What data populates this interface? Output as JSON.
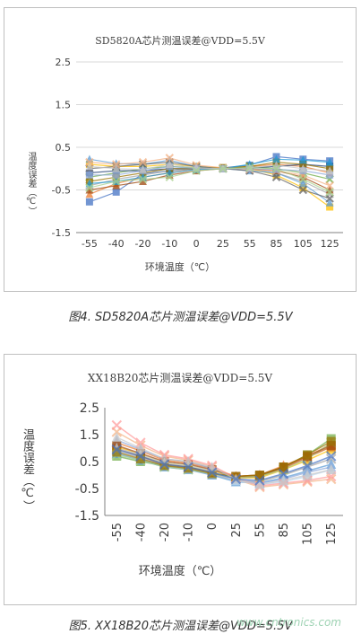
{
  "chart_data": [
    {
      "type": "line",
      "title": "SD5820A芯片测温误差@VDD=5.5V",
      "xlabel": "环境温度（℃）",
      "ylabel": "温度误差（℃）",
      "categories": [
        "-55",
        "-40",
        "-20",
        "-10",
        "0",
        "25",
        "55",
        "85",
        "105",
        "125"
      ],
      "ylim": [
        -1.5,
        2.5
      ],
      "yticks": [
        "2.5",
        "1.5",
        "0.5",
        "-0.5",
        "-1.5"
      ],
      "ytick_values": [
        2.5,
        1.5,
        0.5,
        -0.5,
        -1.5
      ],
      "grid": true,
      "colors": [
        "#4472c4",
        "#ed7d31",
        "#a5a5a5",
        "#ffc000",
        "#5b9bd5",
        "#70ad47",
        "#264478",
        "#9e480e",
        "#636363",
        "#997300",
        "#1f9ad6",
        "#f4b183",
        "#8faadc",
        "#c9c9c9",
        "#a9d18e"
      ],
      "series": [
        {
          "values": [
            -0.78,
            -0.55,
            -0.12,
            -0.05,
            0.02,
            0.02,
            0.08,
            0.28,
            0.22,
            0.18
          ]
        },
        {
          "values": [
            -0.6,
            -0.35,
            -0.2,
            -0.1,
            0.0,
            0.0,
            0.05,
            0.1,
            0.05,
            -0.1
          ]
        },
        {
          "values": [
            -0.4,
            -0.25,
            -0.15,
            -0.05,
            0.0,
            0.0,
            0.0,
            -0.1,
            -0.3,
            -0.6
          ]
        },
        {
          "values": [
            0.1,
            0.05,
            0.05,
            0.1,
            0.05,
            0.02,
            0.0,
            -0.15,
            -0.45,
            -0.9
          ]
        },
        {
          "values": [
            0.22,
            0.12,
            0.1,
            0.2,
            0.05,
            0.0,
            -0.05,
            -0.1,
            -0.35,
            -0.8
          ]
        },
        {
          "values": [
            -0.2,
            -0.1,
            0.0,
            0.05,
            0.02,
            0.0,
            0.05,
            0.0,
            -0.1,
            -0.25
          ]
        },
        {
          "values": [
            -0.1,
            -0.05,
            -0.05,
            0.0,
            0.0,
            0.0,
            0.02,
            0.05,
            0.1,
            0.05
          ]
        },
        {
          "values": [
            -0.5,
            -0.4,
            -0.3,
            -0.15,
            -0.05,
            0.0,
            0.0,
            -0.05,
            -0.2,
            -0.5
          ]
        },
        {
          "values": [
            0.0,
            0.05,
            0.1,
            0.15,
            0.05,
            0.0,
            -0.05,
            -0.2,
            -0.5,
            -0.7
          ]
        },
        {
          "values": [
            -0.3,
            -0.2,
            -0.1,
            0.0,
            0.0,
            0.02,
            0.05,
            0.15,
            0.1,
            0.0
          ]
        },
        {
          "values": [
            -0.35,
            -0.3,
            -0.2,
            -0.1,
            -0.02,
            0.0,
            0.1,
            0.22,
            0.2,
            0.15
          ]
        },
        {
          "values": [
            0.15,
            0.1,
            0.15,
            0.25,
            0.08,
            0.02,
            -0.02,
            -0.05,
            -0.15,
            -0.4
          ]
        },
        {
          "values": [
            -0.15,
            -0.15,
            -0.05,
            0.05,
            0.0,
            0.0,
            0.0,
            -0.02,
            -0.05,
            -0.15
          ]
        },
        {
          "values": [
            0.05,
            0.0,
            -0.02,
            0.1,
            0.02,
            0.0,
            0.02,
            0.08,
            0.0,
            -0.05
          ]
        },
        {
          "values": [
            -0.45,
            -0.3,
            -0.25,
            -0.2,
            -0.05,
            0.0,
            0.02,
            0.0,
            -0.25,
            -0.55
          ]
        }
      ]
    },
    {
      "type": "line",
      "title": "XX18B20芯片测温误差@VDD=5.5V",
      "xlabel": "环境温度（℃）",
      "ylabel": "温度误差（℃）",
      "categories": [
        "-55",
        "-40",
        "-20",
        "-10",
        "0",
        "25",
        "55",
        "85",
        "105",
        "125"
      ],
      "ylim": [
        -1.5,
        2.5
      ],
      "yticks": [
        "2.5",
        "1.5",
        "0.5",
        "-0.5",
        "-1.5"
      ],
      "ytick_values": [
        2.5,
        1.5,
        0.5,
        -0.5,
        -1.5
      ],
      "grid": false,
      "colors": [
        "#70ad47",
        "#ed7d31",
        "#a5a5a5",
        "#ffc000",
        "#5b9bd5",
        "#f4b183",
        "#c55a11",
        "#8faadc",
        "#a9d18e",
        "#9e480e",
        "#bdd7ee",
        "#ff9999",
        "#997300",
        "#c9c9c9",
        "#4472c4"
      ],
      "series": [
        {
          "values": [
            0.7,
            0.5,
            0.35,
            0.3,
            0.1,
            -0.1,
            -0.05,
            0.3,
            0.75,
            1.35
          ]
        },
        {
          "values": [
            1.2,
            0.9,
            0.55,
            0.45,
            0.25,
            -0.05,
            0.0,
            0.35,
            0.7,
            1.15
          ]
        },
        {
          "values": [
            0.9,
            0.65,
            0.35,
            0.25,
            0.05,
            -0.2,
            -0.25,
            0.0,
            0.3,
            0.6
          ]
        },
        {
          "values": [
            1.05,
            0.75,
            0.45,
            0.35,
            0.15,
            -0.1,
            -0.1,
            0.2,
            0.55,
            0.95
          ]
        },
        {
          "values": [
            0.8,
            0.55,
            0.3,
            0.2,
            0.0,
            -0.25,
            -0.3,
            -0.1,
            0.15,
            0.4
          ]
        },
        {
          "values": [
            1.6,
            1.1,
            0.7,
            0.55,
            0.3,
            -0.15,
            -0.45,
            -0.35,
            -0.25,
            -0.15
          ]
        },
        {
          "values": [
            1.0,
            0.7,
            0.4,
            0.3,
            0.1,
            -0.1,
            -0.05,
            0.25,
            0.65,
            1.05
          ]
        },
        {
          "values": [
            1.3,
            0.95,
            0.6,
            0.5,
            0.25,
            -0.15,
            -0.3,
            -0.15,
            0.1,
            0.3
          ]
        },
        {
          "values": [
            0.75,
            0.55,
            0.3,
            0.2,
            0.05,
            -0.1,
            -0.05,
            0.2,
            0.6,
            1.2
          ]
        },
        {
          "values": [
            1.1,
            0.8,
            0.5,
            0.4,
            0.2,
            -0.05,
            0.0,
            0.3,
            0.7,
            1.1
          ]
        },
        {
          "values": [
            1.0,
            0.75,
            0.45,
            0.35,
            0.15,
            -0.2,
            -0.35,
            -0.25,
            -0.05,
            0.2
          ]
        },
        {
          "values": [
            1.85,
            1.2,
            0.75,
            0.6,
            0.35,
            -0.1,
            -0.4,
            -0.3,
            -0.2,
            -0.05
          ]
        },
        {
          "values": [
            0.85,
            0.6,
            0.35,
            0.25,
            0.05,
            -0.05,
            0.0,
            0.3,
            0.75,
            1.25
          ]
        },
        {
          "values": [
            1.4,
            1.0,
            0.6,
            0.5,
            0.3,
            -0.15,
            -0.35,
            -0.2,
            0.0,
            0.2
          ]
        },
        {
          "values": [
            0.95,
            0.7,
            0.4,
            0.3,
            0.1,
            -0.15,
            -0.2,
            0.05,
            0.35,
            0.7
          ]
        }
      ]
    }
  ],
  "captions": {
    "fig4": "图4. SD5820A芯片测温误差@VDD=5.5V",
    "fig5": "图5. XX18B20芯片测温误差@VDD=5.5V"
  },
  "watermark": "www.cntronics.com"
}
